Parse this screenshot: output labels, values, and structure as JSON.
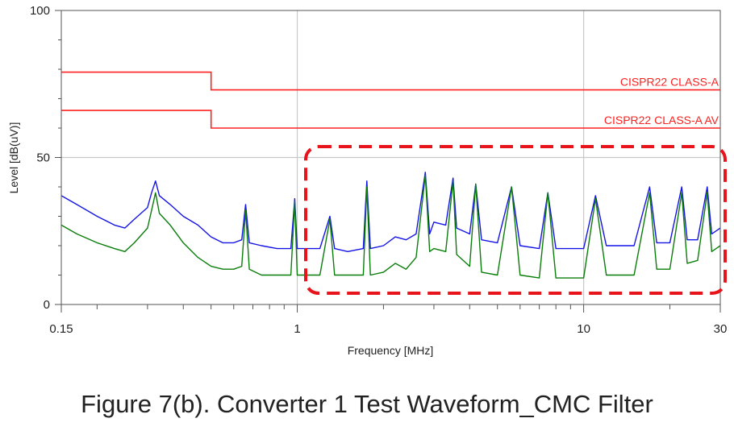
{
  "caption": "Figure 7(b). Converter 1 Test Waveform_CMC Filter",
  "chart_data": {
    "type": "line",
    "xlabel": "Frequency [MHz]",
    "ylabel": "Level [dB(uV)]",
    "xscale": "log",
    "xlim": [
      0.15,
      30
    ],
    "ylim": [
      0,
      100
    ],
    "xticks": [
      0.15,
      1,
      10,
      30
    ],
    "xtick_labels": [
      "0.15",
      "1",
      "10",
      "30"
    ],
    "yticks": [
      0,
      50,
      100
    ],
    "ytick_labels": [
      "0",
      "50",
      "100"
    ],
    "grid": true,
    "limits": [
      {
        "name": "CISPR22 CLASS-A",
        "color": "#ff2020",
        "points": [
          [
            0.15,
            79
          ],
          [
            0.5,
            79
          ],
          [
            0.5,
            73
          ],
          [
            30,
            73
          ]
        ]
      },
      {
        "name": "CISPR22 CLASS-A AV",
        "color": "#ff2020",
        "points": [
          [
            0.15,
            66
          ],
          [
            0.5,
            66
          ],
          [
            0.5,
            60
          ],
          [
            30,
            60
          ]
        ]
      }
    ],
    "series": [
      {
        "color": "#1414e6",
        "points": [
          [
            0.15,
            37
          ],
          [
            0.17,
            34
          ],
          [
            0.2,
            30
          ],
          [
            0.23,
            27
          ],
          [
            0.25,
            26
          ],
          [
            0.27,
            29
          ],
          [
            0.3,
            33
          ],
          [
            0.31,
            38
          ],
          [
            0.32,
            42
          ],
          [
            0.33,
            37
          ],
          [
            0.36,
            34
          ],
          [
            0.4,
            30
          ],
          [
            0.45,
            27
          ],
          [
            0.5,
            23
          ],
          [
            0.55,
            21
          ],
          [
            0.6,
            21
          ],
          [
            0.64,
            22
          ],
          [
            0.66,
            34
          ],
          [
            0.68,
            21
          ],
          [
            0.75,
            20
          ],
          [
            0.85,
            19
          ],
          [
            0.95,
            19
          ],
          [
            0.98,
            36
          ],
          [
            1.0,
            19
          ],
          [
            1.2,
            19
          ],
          [
            1.3,
            30
          ],
          [
            1.35,
            19
          ],
          [
            1.5,
            18
          ],
          [
            1.7,
            19
          ],
          [
            1.75,
            42
          ],
          [
            1.8,
            19
          ],
          [
            2.0,
            20
          ],
          [
            2.2,
            23
          ],
          [
            2.4,
            22
          ],
          [
            2.6,
            24
          ],
          [
            2.8,
            45
          ],
          [
            2.9,
            24
          ],
          [
            3.0,
            28
          ],
          [
            3.3,
            27
          ],
          [
            3.5,
            43
          ],
          [
            3.6,
            26
          ],
          [
            4.0,
            24
          ],
          [
            4.2,
            41
          ],
          [
            4.4,
            22
          ],
          [
            5.0,
            21
          ],
          [
            5.6,
            40
          ],
          [
            6.0,
            20
          ],
          [
            7.0,
            19
          ],
          [
            7.5,
            38
          ],
          [
            8.0,
            19
          ],
          [
            10.0,
            19
          ],
          [
            11,
            37
          ],
          [
            12,
            20
          ],
          [
            15,
            20
          ],
          [
            17,
            40
          ],
          [
            18,
            21
          ],
          [
            20,
            21
          ],
          [
            22,
            40
          ],
          [
            23,
            22
          ],
          [
            25,
            22
          ],
          [
            27,
            40
          ],
          [
            28,
            24
          ],
          [
            30,
            26
          ]
        ]
      },
      {
        "color": "#0a7d0a",
        "points": [
          [
            0.15,
            27
          ],
          [
            0.17,
            24
          ],
          [
            0.2,
            21
          ],
          [
            0.23,
            19
          ],
          [
            0.25,
            18
          ],
          [
            0.27,
            21
          ],
          [
            0.3,
            26
          ],
          [
            0.31,
            32
          ],
          [
            0.32,
            38
          ],
          [
            0.33,
            31
          ],
          [
            0.36,
            27
          ],
          [
            0.4,
            21
          ],
          [
            0.45,
            16
          ],
          [
            0.5,
            13
          ],
          [
            0.55,
            12
          ],
          [
            0.6,
            12
          ],
          [
            0.64,
            13
          ],
          [
            0.66,
            32
          ],
          [
            0.68,
            12
          ],
          [
            0.75,
            10
          ],
          [
            0.85,
            10
          ],
          [
            0.95,
            10
          ],
          [
            0.98,
            35
          ],
          [
            1.0,
            10
          ],
          [
            1.2,
            10
          ],
          [
            1.3,
            29
          ],
          [
            1.35,
            10
          ],
          [
            1.5,
            10
          ],
          [
            1.7,
            10
          ],
          [
            1.75,
            40
          ],
          [
            1.8,
            10
          ],
          [
            2.0,
            11
          ],
          [
            2.2,
            14
          ],
          [
            2.4,
            12
          ],
          [
            2.6,
            16
          ],
          [
            2.8,
            44
          ],
          [
            2.9,
            18
          ],
          [
            3.0,
            19
          ],
          [
            3.3,
            18
          ],
          [
            3.5,
            42
          ],
          [
            3.6,
            17
          ],
          [
            4.0,
            13
          ],
          [
            4.2,
            41
          ],
          [
            4.4,
            11
          ],
          [
            5.0,
            10
          ],
          [
            5.6,
            40
          ],
          [
            6.0,
            10
          ],
          [
            7.0,
            9
          ],
          [
            7.5,
            38
          ],
          [
            8.0,
            9
          ],
          [
            10.0,
            9
          ],
          [
            11,
            36
          ],
          [
            12,
            10
          ],
          [
            15,
            10
          ],
          [
            17,
            38
          ],
          [
            18,
            12
          ],
          [
            20,
            12
          ],
          [
            22,
            38
          ],
          [
            23,
            14
          ],
          [
            25,
            15
          ],
          [
            27,
            38
          ],
          [
            28,
            18
          ],
          [
            30,
            20
          ]
        ]
      }
    ]
  }
}
